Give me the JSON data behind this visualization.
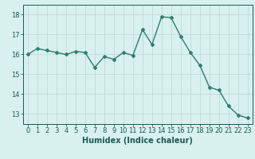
{
  "x": [
    0,
    1,
    2,
    3,
    4,
    5,
    6,
    7,
    8,
    9,
    10,
    11,
    12,
    13,
    14,
    15,
    16,
    17,
    18,
    19,
    20,
    21,
    22,
    23
  ],
  "y": [
    16.0,
    16.3,
    16.2,
    16.1,
    16.0,
    16.15,
    16.1,
    15.35,
    15.9,
    15.75,
    16.1,
    15.95,
    17.25,
    16.5,
    17.9,
    17.85,
    16.9,
    16.1,
    15.45,
    14.35,
    14.2,
    13.4,
    12.95,
    12.8
  ],
  "xlabel": "Humidex (Indice chaleur)",
  "ylabel": "",
  "xlim": [
    -0.5,
    23.5
  ],
  "ylim": [
    12.5,
    18.5
  ],
  "yticks": [
    13,
    14,
    15,
    16,
    17,
    18
  ],
  "xticks": [
    0,
    1,
    2,
    3,
    4,
    5,
    6,
    7,
    8,
    9,
    10,
    11,
    12,
    13,
    14,
    15,
    16,
    17,
    18,
    19,
    20,
    21,
    22,
    23
  ],
  "line_color": "#2e7d6e",
  "marker": "D",
  "marker_size": 2.0,
  "line_width": 1.0,
  "bg_color": "#d8f0ee",
  "grid_color": "#c0dbd8",
  "text_color": "#1a5c52",
  "xlabel_fontsize": 7.0,
  "tick_fontsize": 6.0
}
